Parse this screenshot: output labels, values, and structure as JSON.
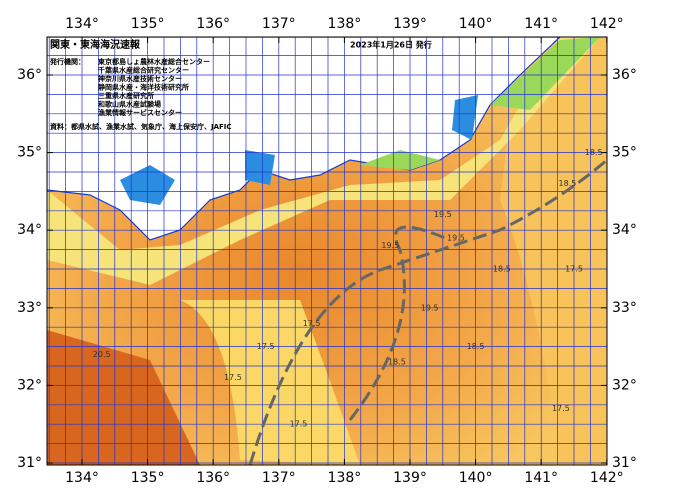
{
  "header": {
    "title": "関東・東海海況速報",
    "date": "2023年1月26日 発行"
  },
  "issuer": {
    "label": "発行機関：",
    "names": [
      "東京都島しょ農林水産総合センター",
      "千葉県水産総合研究センター",
      "神奈川県水産技術センター",
      "静岡県水産・海洋技術研究所",
      "三重県水産研究所",
      "和歌山県水産試験場",
      "漁業情報サービスセンター"
    ]
  },
  "source": "資料：都県水試、漁業水試、気象庁、海上保安庁、JAFIC",
  "map": {
    "lon_ticks": [
      {
        "value": 134,
        "label": "134°"
      },
      {
        "value": 135,
        "label": "135°"
      },
      {
        "value": 136,
        "label": "136°"
      },
      {
        "value": 137,
        "label": "137°"
      },
      {
        "value": 138,
        "label": "138°"
      },
      {
        "value": 139,
        "label": "139°"
      },
      {
        "value": 140,
        "label": "140°"
      },
      {
        "value": 141,
        "label": "141°"
      },
      {
        "value": 142,
        "label": "142°"
      }
    ],
    "lat_ticks": [
      {
        "value": 31,
        "label": "31°"
      },
      {
        "value": 32,
        "label": "32°"
      },
      {
        "value": 33,
        "label": "33°"
      },
      {
        "value": 34,
        "label": "34°"
      },
      {
        "value": 35,
        "label": "35°"
      },
      {
        "value": 36,
        "label": "36°"
      }
    ],
    "contour_labels": [
      {
        "text": "19.5",
        "lon": 139.5,
        "lat": 34.2
      },
      {
        "text": "19.5",
        "lon": 139.7,
        "lat": 33.9
      },
      {
        "text": "19.5",
        "lon": 139.3,
        "lat": 33.0
      },
      {
        "text": "18.5",
        "lon": 140.4,
        "lat": 33.5
      },
      {
        "text": "18.5",
        "lon": 141.4,
        "lat": 34.6
      },
      {
        "text": "17.5",
        "lon": 141.5,
        "lat": 33.5
      },
      {
        "text": "17.5",
        "lon": 136.3,
        "lat": 32.1
      },
      {
        "text": "17.5",
        "lon": 136.8,
        "lat": 32.5
      },
      {
        "text": "17.5",
        "lon": 137.5,
        "lat": 32.8
      },
      {
        "text": "17.5",
        "lon": 137.3,
        "lat": 31.5
      },
      {
        "text": "18.5",
        "lon": 138.8,
        "lat": 32.3
      },
      {
        "text": "20.5",
        "lon": 134.3,
        "lat": 32.4
      },
      {
        "text": "19.5",
        "lon": 138.7,
        "lat": 33.8
      },
      {
        "text": "18.5",
        "lon": 140.0,
        "lat": 32.5
      },
      {
        "text": "17.5",
        "lon": 141.3,
        "lat": 31.7
      },
      {
        "text": "18.5",
        "lon": 141.8,
        "lat": 35.0
      }
    ]
  }
}
